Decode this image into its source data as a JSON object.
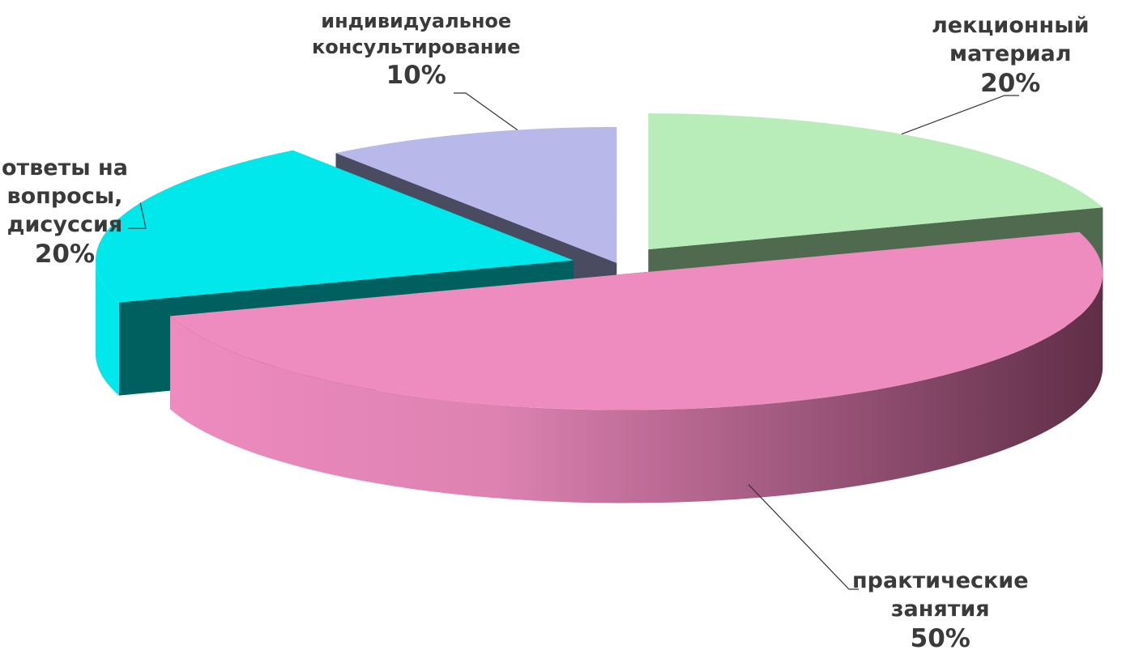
{
  "chart_data": {
    "type": "pie",
    "style": "3d-exploded",
    "slices": [
      {
        "label": "лекционный материал",
        "label_lines": [
          "лекционный",
          "материал"
        ],
        "value": 20,
        "value_label": "20%",
        "top_color": "#b8ecb8",
        "side_color": "#4f6a4f"
      },
      {
        "label": "практические занятия",
        "label_lines": [
          "практические",
          "занятия"
        ],
        "value": 50,
        "value_label": "50%",
        "top_color": "#ee8bbf",
        "side_color": "#6e3550"
      },
      {
        "label": "ответы на вопросы, дисуссия",
        "label_lines": [
          "ответы на",
          "вопросы,",
          "дисуссия"
        ],
        "value": 20,
        "value_label": "20%",
        "top_color": "#00e8ec",
        "side_color": "#006060"
      },
      {
        "label": "индивидуальное консультирование",
        "label_lines": [
          "индивидуальное",
          "консультирование"
        ],
        "value": 10,
        "value_label": "10%",
        "top_color": "#b8b8ea",
        "side_color": "#4a4a60"
      }
    ],
    "legend": "none"
  }
}
